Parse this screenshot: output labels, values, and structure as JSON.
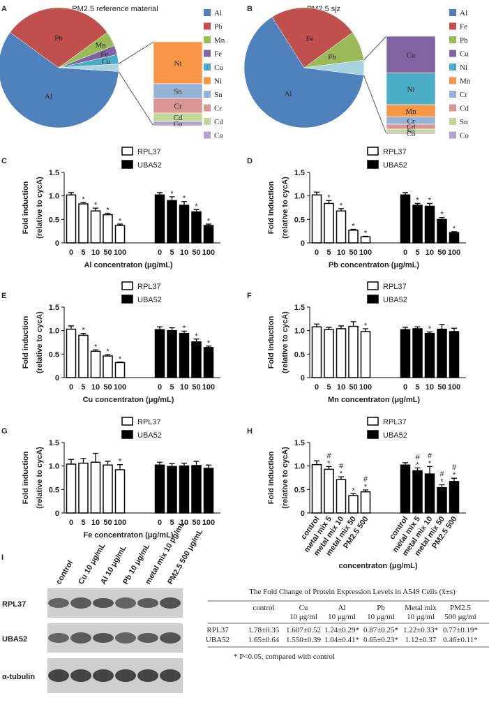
{
  "chart_data": [
    {
      "type": "pie",
      "panel": "A",
      "title": "PM2.5 reference material",
      "categories": [
        "Al",
        "Pb",
        "Mn",
        "Fe",
        "Cu"
      ],
      "values": [
        59,
        30,
        4,
        2.5,
        2.5
      ],
      "colors": [
        "#4f81bd",
        "#c0504d",
        "#9bbb59",
        "#8064a2",
        "#4bacc6"
      ],
      "bar": {
        "categories": [
          "Ni",
          "Sn",
          "Cr",
          "Cd",
          "Co"
        ],
        "values": [
          1,
          0.35,
          0.35,
          0.2,
          0.1
        ],
        "colors": [
          "#f79646",
          "#95b3d7",
          "#d99694",
          "#c3d69b",
          "#b3a2c7"
        ]
      }
    },
    {
      "type": "pie",
      "panel": "B",
      "title": "PM2.5 sjz",
      "categories": [
        "Al",
        "Fe",
        "Pb"
      ],
      "values": [
        64,
        24,
        8
      ],
      "colors": [
        "#4f81bd",
        "#c0504d",
        "#9bbb59"
      ],
      "bar": {
        "categories": [
          "Cu",
          "Ni",
          "Mn",
          "Cr",
          "Cd",
          "Sn",
          "Co"
        ],
        "values": [
          1.5,
          1.3,
          0.5,
          0.3,
          0.2,
          0.15,
          0.05
        ],
        "colors": [
          "#8064a2",
          "#4bacc6",
          "#f79646",
          "#95b3d7",
          "#d99694",
          "#c3d69b",
          "#b3a2c7"
        ]
      }
    },
    {
      "type": "bar",
      "panel": "C",
      "ylabel": [
        "Fold induction",
        "(relative to cycA)"
      ],
      "xlabel": "Al concentraton (μg/mL)",
      "categories": [
        "0",
        "5",
        "10",
        "50",
        "100"
      ],
      "ylim": [
        0,
        1.5
      ],
      "yticks": [
        0,
        0.5,
        {
          "value": 1,
          "label": "1.0"
        },
        1.5
      ],
      "series": [
        {
          "name": "RPL37",
          "color": "#ffffff",
          "values": [
            1.02,
            0.83,
            0.68,
            0.6,
            0.37
          ],
          "errors": [
            0.05,
            0.03,
            0.06,
            0.03,
            0.03
          ],
          "annotations": [
            null,
            "*",
            "*",
            "*",
            "*"
          ]
        },
        {
          "name": "UBA52",
          "color": "#000000",
          "values": [
            1.02,
            0.9,
            0.8,
            0.66,
            0.37
          ],
          "errors": [
            0.05,
            0.08,
            0.08,
            0.05,
            0.03
          ],
          "annotations": [
            null,
            "*",
            "*",
            "*",
            "*"
          ]
        }
      ]
    },
    {
      "type": "bar",
      "panel": "D",
      "ylabel": [
        "Fold induction",
        "(relative to cycA)"
      ],
      "xlabel": "Pb concentraton (μg/mL)",
      "categories": [
        "0",
        "5",
        "10",
        "50",
        "100"
      ],
      "ylim": [
        0,
        1.5
      ],
      "yticks": [
        0,
        0.5,
        {
          "value": 1,
          "label": "1.0"
        },
        1.5
      ],
      "series": [
        {
          "name": "RPL37",
          "color": "#ffffff",
          "values": [
            1.02,
            0.84,
            0.68,
            0.27,
            0.13
          ],
          "errors": [
            0.06,
            0.06,
            0.05,
            0.02,
            0.01
          ],
          "annotations": [
            null,
            "*",
            "*",
            "*",
            "*"
          ]
        },
        {
          "name": "UBA52",
          "color": "#000000",
          "values": [
            1.02,
            0.8,
            0.78,
            0.5,
            0.22
          ],
          "errors": [
            0.05,
            0.04,
            0.06,
            0.04,
            0.02
          ],
          "annotations": [
            null,
            "*",
            "*",
            "*",
            "*"
          ]
        }
      ]
    },
    {
      "type": "bar",
      "panel": "E",
      "ylabel": [
        "Fold induction",
        "(relative to cycA)"
      ],
      "xlabel": "Cu concentraton (μg/mL)",
      "categories": [
        "0",
        "5",
        "10",
        "50",
        "100"
      ],
      "ylim": [
        0,
        1.5
      ],
      "yticks": [
        0,
        0.5,
        {
          "value": 1,
          "label": "1.0"
        },
        1.5
      ],
      "series": [
        {
          "name": "RPL37",
          "color": "#ffffff",
          "values": [
            1.03,
            0.9,
            0.56,
            0.46,
            0.32
          ],
          "errors": [
            0.07,
            0.04,
            0.03,
            0.03,
            0.01
          ],
          "annotations": [
            null,
            "*",
            "*",
            "*",
            "*"
          ]
        },
        {
          "name": "UBA52",
          "color": "#000000",
          "values": [
            1.02,
            1.0,
            0.94,
            0.76,
            0.64
          ],
          "errors": [
            0.06,
            0.06,
            0.05,
            0.06,
            0.03
          ],
          "annotations": [
            null,
            null,
            "*",
            "*",
            "*"
          ]
        }
      ]
    },
    {
      "type": "bar",
      "panel": "F",
      "ylabel": [
        "Fold induction",
        "(relative to cycA)"
      ],
      "xlabel": "Mn concentraton (μg/mL)",
      "categories": [
        "0",
        "5",
        "10",
        "50",
        "100"
      ],
      "ylim": [
        0,
        1.5
      ],
      "yticks": [
        0,
        0.5,
        {
          "value": 1,
          "label": "1.0"
        },
        1.5
      ],
      "series": [
        {
          "name": "RPL37",
          "color": "#ffffff",
          "values": [
            1.08,
            1.02,
            1.04,
            1.09,
            0.98
          ],
          "errors": [
            0.06,
            0.05,
            0.06,
            0.1,
            0.06
          ],
          "annotations": [
            null,
            null,
            null,
            null,
            "*"
          ]
        },
        {
          "name": "UBA52",
          "color": "#000000",
          "values": [
            1.02,
            1.04,
            0.94,
            1.03,
            0.98
          ],
          "errors": [
            0.05,
            0.04,
            0.03,
            0.1,
            0.07
          ],
          "annotations": [
            null,
            null,
            "*",
            null,
            null
          ]
        }
      ]
    },
    {
      "type": "bar",
      "panel": "G",
      "ylabel": [
        "Fold induction",
        "(relative to cycA)"
      ],
      "xlabel": "Fe concentraton (μg/mL)",
      "categories": [
        "0",
        "5",
        "10",
        "50",
        "100"
      ],
      "ylim": [
        0,
        1.5
      ],
      "yticks": [
        0,
        0.5,
        {
          "value": 1,
          "label": "1.0"
        },
        1.5
      ],
      "series": [
        {
          "name": "RPL37",
          "color": "#ffffff",
          "values": [
            1.04,
            1.06,
            1.08,
            1.02,
            0.92
          ],
          "errors": [
            0.1,
            0.1,
            0.19,
            0.08,
            0.11
          ],
          "annotations": [
            null,
            null,
            null,
            null,
            "*"
          ]
        },
        {
          "name": "UBA52",
          "color": "#000000",
          "values": [
            1.02,
            0.99,
            1.0,
            1.01,
            0.95
          ],
          "errors": [
            0.06,
            0.06,
            0.06,
            0.09,
            0.07
          ],
          "annotations": [
            null,
            null,
            null,
            null,
            null
          ]
        }
      ]
    },
    {
      "type": "bar",
      "panel": "H",
      "ylabel": [
        "Fold induction",
        "(relative to cycA)"
      ],
      "xlabel": "concentraton (μg/mL)",
      "categories": [
        "control",
        "metal mix 5",
        "metal mix 10",
        "metal mix 50",
        "PM2.5 500"
      ],
      "ylim": [
        0,
        1.5
      ],
      "yticks": [
        0,
        0.5,
        {
          "value": 1,
          "label": "1.0"
        },
        1.5
      ],
      "series": [
        {
          "name": "RPL37",
          "color": "#ffffff",
          "values": [
            1.03,
            0.93,
            0.71,
            0.37,
            0.45
          ],
          "errors": [
            0.08,
            0.06,
            0.06,
            0.04,
            0.04
          ],
          "annotations": [
            null,
            [
              "#",
              "*"
            ],
            [
              "#",
              "*"
            ],
            "*",
            [
              "#",
              "*"
            ]
          ]
        },
        {
          "name": "UBA52",
          "color": "#000000",
          "values": [
            1.02,
            0.9,
            0.83,
            0.54,
            0.67
          ],
          "errors": [
            0.05,
            0.06,
            0.16,
            0.06,
            0.07
          ],
          "annotations": [
            null,
            [
              "#",
              "*"
            ],
            [
              "#",
              "*"
            ],
            [
              "#",
              "*"
            ],
            [
              "#",
              "*"
            ]
          ]
        }
      ]
    }
  ],
  "blot": {
    "panel": "I",
    "lanes": [
      "control",
      "Cu 10  μg/mL",
      "Al 10  μg/mL",
      "Pb 10  μg/mL",
      "metal mix 10  μg/mL",
      "PM2.5 500  μg/mL"
    ],
    "rows": [
      "RPL37",
      "UBA52",
      "α-tubulin"
    ]
  },
  "table": {
    "title": "The Fold Change of Protein Expression Levels in A549 Cells (x̄±s)",
    "header": [
      "control",
      "Cu",
      "Al",
      "Pb",
      "Metal mix",
      "PM2.5"
    ],
    "subheader": [
      null,
      "10 μg/ml",
      "10 μg/ml",
      "10 μg/ml",
      "10 μg/ml",
      "500 μg/ml"
    ],
    "rows": [
      [
        "RPL37",
        "1.78±0.35",
        "1.607±0.52",
        "1.24±0.29*",
        "0.87±0.25*",
        "1.22±0.33*",
        "0.77±0.19*"
      ],
      [
        "UBA52",
        "1.65±0.64",
        "1.550±0.39",
        "1.04±0.41*",
        "0.65±0.23*",
        "1.12±0.37",
        "0.46±0.11*"
      ]
    ],
    "footnote": "* P<0.05, compared with control"
  }
}
